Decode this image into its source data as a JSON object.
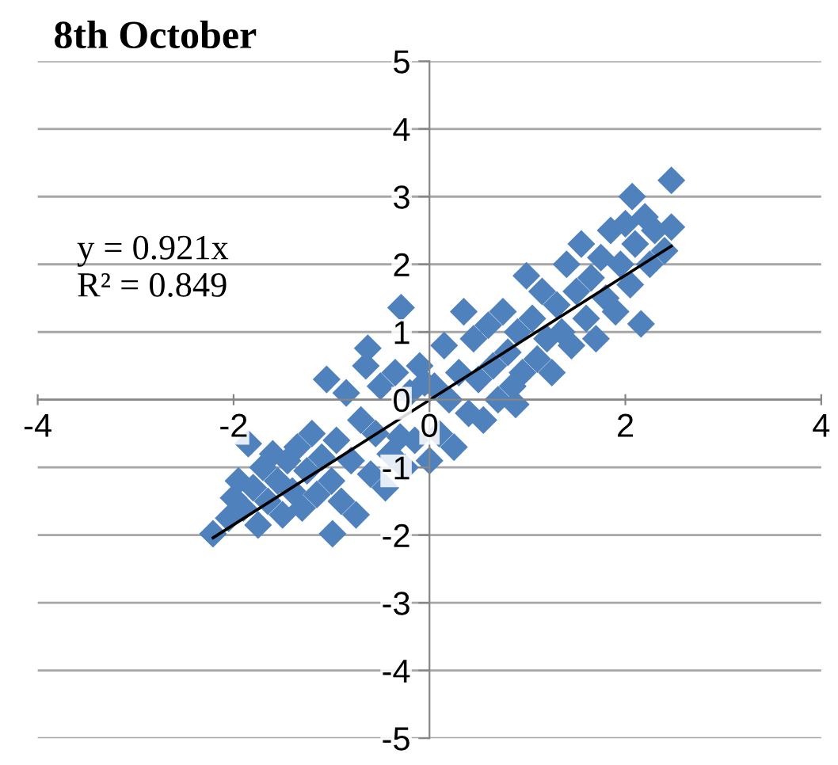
{
  "chart_data": {
    "type": "scatter",
    "title": "8th October",
    "xlim": [
      -4,
      4
    ],
    "xticks": [
      -4,
      -2,
      0,
      2,
      4
    ],
    "ylim": [
      -5,
      5
    ],
    "yticks": [
      -5,
      -4,
      -3,
      -2,
      -1,
      0,
      1,
      2,
      3,
      4,
      5
    ],
    "grid": "y",
    "legend": false,
    "annotations": [
      "y = 0.921x",
      "R² = 0.849"
    ],
    "series": [
      {
        "type": "scatter",
        "marker": "diamond",
        "color": "#4f81bd",
        "x": [
          -2.21,
          -2.05,
          -2.0,
          -1.95,
          -1.9,
          -1.85,
          -1.8,
          -1.75,
          -1.7,
          -1.65,
          -1.6,
          -1.55,
          -1.5,
          -1.45,
          -1.4,
          -1.35,
          -1.3,
          -1.25,
          -1.2,
          -1.15,
          -1.1,
          -1.05,
          -1.0,
          -0.99,
          -0.95,
          -0.9,
          -0.85,
          -0.8,
          -0.75,
          -0.7,
          -0.65,
          -0.63,
          -0.6,
          -0.55,
          -0.5,
          -0.45,
          -0.4,
          -0.35,
          -0.29,
          -0.3,
          -0.25,
          -0.2,
          -0.15,
          -0.1,
          -0.05,
          0.0,
          0.05,
          0.1,
          0.15,
          0.2,
          0.25,
          0.3,
          0.35,
          0.4,
          0.45,
          0.5,
          0.55,
          0.6,
          0.65,
          0.7,
          0.75,
          0.8,
          0.85,
          0.88,
          0.9,
          0.95,
          0.99,
          1.05,
          1.1,
          1.15,
          1.2,
          1.25,
          1.3,
          1.35,
          1.4,
          1.45,
          1.5,
          1.55,
          1.6,
          1.65,
          1.7,
          1.75,
          1.8,
          1.85,
          1.9,
          1.95,
          2.0,
          2.07,
          2.05,
          2.1,
          2.16,
          2.2,
          2.25,
          2.3,
          2.4,
          2.47,
          2.47
        ],
        "values": [
          -1.98,
          -1.75,
          -1.45,
          -1.2,
          -1.6,
          -0.65,
          -1.3,
          -1.85,
          -1.0,
          -1.5,
          -0.8,
          -1.2,
          -1.7,
          -0.9,
          -1.35,
          -0.7,
          -1.6,
          -1.05,
          -0.5,
          -1.4,
          -0.85,
          0.3,
          -1.2,
          -1.98,
          -0.6,
          -1.5,
          0.1,
          -0.9,
          -1.7,
          -0.3,
          0.5,
          0.76,
          -1.1,
          -0.5,
          0.2,
          -1.3,
          -0.8,
          0.4,
          1.36,
          -0.55,
          -1.0,
          0.1,
          -0.6,
          0.5,
          0.25,
          -0.9,
          0.2,
          -0.5,
          0.8,
          0.0,
          -0.7,
          0.4,
          1.3,
          -0.2,
          0.9,
          0.3,
          -0.3,
          1.1,
          0.5,
          0.0,
          1.3,
          0.7,
          0.2,
          -0.07,
          1.0,
          0.4,
          1.83,
          1.2,
          0.6,
          1.6,
          0.9,
          0.4,
          1.4,
          1.0,
          2.0,
          0.8,
          1.6,
          2.3,
          1.2,
          1.8,
          0.9,
          2.1,
          1.5,
          2.5,
          1.3,
          2.0,
          2.6,
          3.0,
          1.7,
          2.3,
          1.12,
          2.7,
          2.0,
          2.5,
          2.2,
          3.24,
          2.55
        ]
      },
      {
        "type": "line",
        "color": "#000000",
        "marker": "none",
        "x": [
          -2.21,
          2.47
        ],
        "values": [
          -2.04,
          2.27
        ]
      }
    ]
  }
}
